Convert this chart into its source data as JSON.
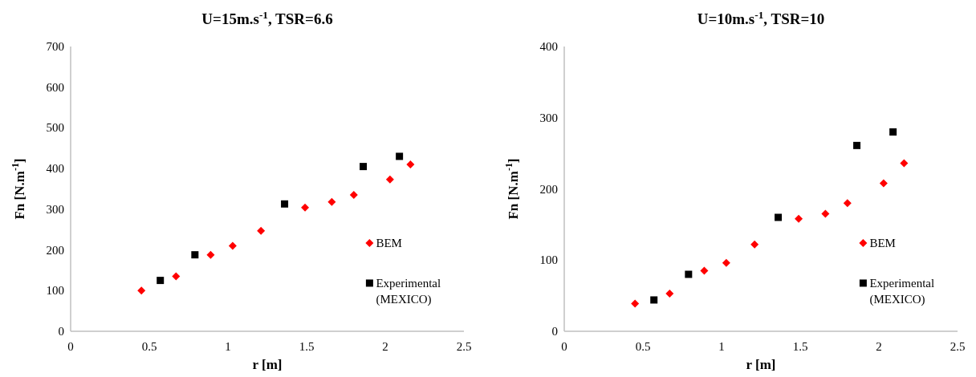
{
  "chart_data": [
    {
      "type": "scatter",
      "title": "U=15m.s$^{-1}$, TSR=6.6",
      "xlabel": "r [m]",
      "ylabel": "Fn [N.m$^{-1}$]",
      "xlim": [
        0,
        2.5
      ],
      "xticks": [
        0,
        0.5,
        1,
        1.5,
        2,
        2.5
      ],
      "ylim": [
        0,
        700
      ],
      "yticks": [
        0,
        100,
        200,
        300,
        400,
        500,
        600,
        700
      ],
      "grid": false,
      "legend": "right",
      "series": [
        {
          "name": "BEM",
          "color": "#ff0000",
          "marker": "diamond",
          "x": [
            0.45,
            0.67,
            0.89,
            1.03,
            1.21,
            1.49,
            1.66,
            1.8,
            2.03,
            2.16
          ],
          "values": [
            100,
            135,
            188,
            210,
            247,
            304,
            318,
            335,
            373,
            410
          ]
        },
        {
          "name": "Experimental (MEXICO)",
          "color": "#000000",
          "marker": "square",
          "x": [
            0.57,
            0.79,
            1.36,
            1.86,
            2.09
          ],
          "values": [
            125,
            188,
            313,
            405,
            430
          ]
        }
      ]
    },
    {
      "type": "scatter",
      "title": "U=10m.s$^{-1}$, TSR=10",
      "xlabel": "r [m]",
      "ylabel": "Fn [N.m$^{-1}$]",
      "xlim": [
        0,
        2.5
      ],
      "xticks": [
        0,
        0.5,
        1,
        1.5,
        2,
        2.5
      ],
      "ylim": [
        0,
        400
      ],
      "yticks": [
        0,
        100,
        200,
        300,
        400
      ],
      "grid": false,
      "legend": "right",
      "series": [
        {
          "name": "BEM",
          "color": "#ff0000",
          "marker": "diamond",
          "x": [
            0.45,
            0.67,
            0.89,
            1.03,
            1.21,
            1.49,
            1.66,
            1.8,
            2.03,
            2.16
          ],
          "values": [
            39,
            53,
            85,
            96,
            122,
            158,
            165,
            180,
            208,
            236
          ]
        },
        {
          "name": "Experimental (MEXICO)",
          "color": "#000000",
          "marker": "square",
          "x": [
            0.57,
            0.79,
            1.36,
            1.86,
            2.09
          ],
          "values": [
            44,
            80,
            160,
            261,
            280
          ]
        }
      ]
    }
  ]
}
